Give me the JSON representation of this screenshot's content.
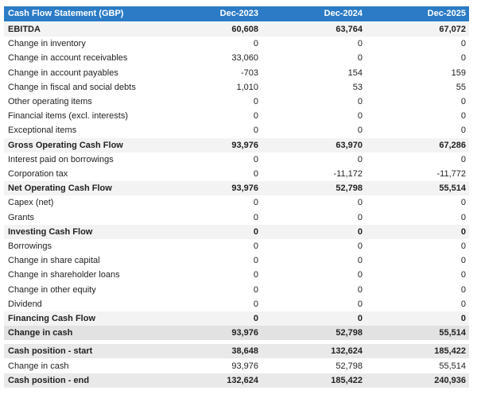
{
  "table": {
    "header": [
      "Cash Flow Statement (GBP)",
      "Dec-2023",
      "Dec-2024",
      "Dec-2025"
    ],
    "rows": [
      [
        "EBITDA",
        "60,608",
        "63,764",
        "67,072"
      ],
      [
        "Change in inventory",
        "0",
        "0",
        "0"
      ],
      [
        "Change in account receivables",
        "33,060",
        "0",
        "0"
      ],
      [
        "Change in account payables",
        "-703",
        "154",
        "159"
      ],
      [
        "Change in fiscal and social debts",
        "1,010",
        "53",
        "55"
      ],
      [
        "Other operating items",
        "0",
        "0",
        "0"
      ],
      [
        "Financial items (excl. interests)",
        "0",
        "0",
        "0"
      ],
      [
        "Exceptional items",
        "0",
        "0",
        "0"
      ],
      [
        "Gross Operating Cash Flow",
        "93,976",
        "63,970",
        "67,286"
      ],
      [
        "Interest paid on borrowings",
        "0",
        "0",
        "0"
      ],
      [
        "Corporation tax",
        "0",
        "-11,172",
        "-11,772"
      ],
      [
        "Net Operating Cash Flow",
        "93,976",
        "52,798",
        "55,514"
      ],
      [
        "Capex (net)",
        "0",
        "0",
        "0"
      ],
      [
        "Grants",
        "0",
        "0",
        "0"
      ],
      [
        "Investing Cash Flow",
        "0",
        "0",
        "0"
      ],
      [
        "Borrowings",
        "0",
        "0",
        "0"
      ],
      [
        "Change in share capital",
        "0",
        "0",
        "0"
      ],
      [
        "Change in shareholder loans",
        "0",
        "0",
        "0"
      ],
      [
        "Change in other equity",
        "0",
        "0",
        "0"
      ],
      [
        "Dividend",
        "0",
        "0",
        "0"
      ],
      [
        "Financing Cash Flow",
        "0",
        "0",
        "0"
      ],
      [
        "Change in cash",
        "93,976",
        "52,798",
        "55,514"
      ],
      [
        "Cash position - start",
        "38,648",
        "132,624",
        "185,422"
      ],
      [
        "Change in cash",
        "93,976",
        "52,798",
        "55,514"
      ],
      [
        "Cash position - end",
        "132,624",
        "185,422",
        "240,936"
      ]
    ]
  }
}
